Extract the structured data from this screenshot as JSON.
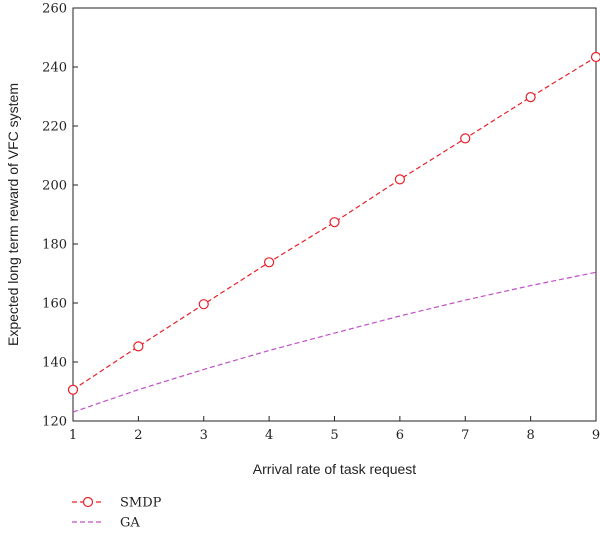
{
  "chart_data": {
    "type": "line",
    "title": "",
    "xlabel": "Arrival rate of task request",
    "ylabel": "Expected long term reward of VFC system",
    "x": [
      1,
      2,
      3,
      4,
      5,
      6,
      7,
      8,
      9
    ],
    "xlim": [
      1,
      9
    ],
    "ylim": [
      120,
      260
    ],
    "xticks": [
      "1",
      "2",
      "3",
      "4",
      "5",
      "6",
      "7",
      "8",
      "9"
    ],
    "yticks": [
      "120",
      "140",
      "160",
      "180",
      "200",
      "220",
      "240",
      "260"
    ],
    "grid": false,
    "legend_position": "bottom-left, below plot",
    "series": [
      {
        "name": "SMDP",
        "values": [
          130.6,
          145.3,
          159.6,
          173.8,
          187.4,
          201.9,
          215.8,
          229.8,
          243.4
        ],
        "color": "#e8202a",
        "line_style": "dashed",
        "marker": "open-circle"
      },
      {
        "name": "GA",
        "values": [
          123.0,
          130.6,
          137.5,
          143.9,
          149.8,
          155.6,
          161.0,
          165.9,
          170.4
        ],
        "color": "#c050c8",
        "line_style": "dashed",
        "marker": "none"
      }
    ]
  }
}
